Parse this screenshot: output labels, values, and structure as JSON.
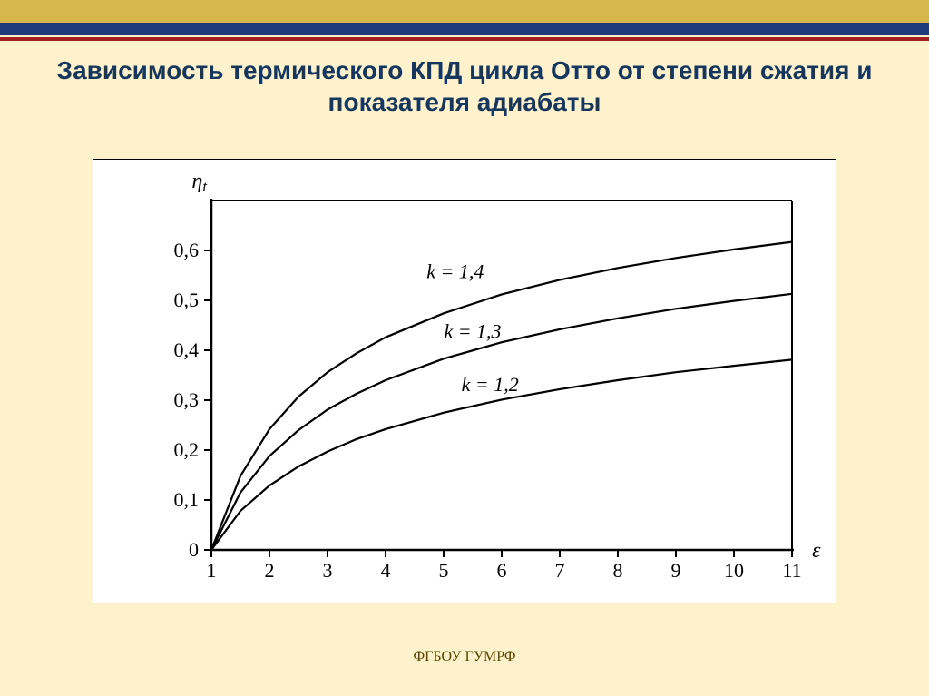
{
  "title": "Зависимость термического КПД цикла Отто от степени сжатия и показателя адиабаты",
  "footer": "ФГБОУ  ГУМРФ",
  "chart": {
    "type": "line",
    "background_color": "#ffffff",
    "axis_color": "#000000",
    "line_color": "#000000",
    "line_width": 2.2,
    "font_family": "Times New Roman",
    "tick_fontsize": 22,
    "label_fontsize": 24,
    "x_axis": {
      "label": "ε",
      "lim": [
        1,
        11
      ],
      "ticks": [
        1,
        2,
        3,
        4,
        5,
        6,
        7,
        8,
        9,
        10,
        11
      ]
    },
    "y_axis": {
      "label": "ηₜ",
      "label_plain": "η",
      "label_sub": "t",
      "lim": [
        0,
        0.7
      ],
      "ticks": [
        0,
        0.1,
        0.2,
        0.3,
        0.4,
        0.5,
        0.6
      ],
      "tick_labels": [
        "0",
        "0,1",
        "0,2",
        "0,3",
        "0,4",
        "0,5",
        "0,6"
      ]
    },
    "series": [
      {
        "k": 1.4,
        "label": "k = 1,4",
        "label_x": 5.2,
        "label_y": 0.545,
        "points": [
          [
            1,
            0
          ],
          [
            1.5,
            0.148
          ],
          [
            2,
            0.242
          ],
          [
            2.5,
            0.307
          ],
          [
            3,
            0.356
          ],
          [
            3.5,
            0.394
          ],
          [
            4,
            0.426
          ],
          [
            5,
            0.474
          ],
          [
            6,
            0.512
          ],
          [
            7,
            0.541
          ],
          [
            8,
            0.565
          ],
          [
            9,
            0.585
          ],
          [
            10,
            0.602
          ],
          [
            11,
            0.617
          ]
        ]
      },
      {
        "k": 1.3,
        "label": "k = 1,3",
        "label_x": 5.5,
        "label_y": 0.425,
        "points": [
          [
            1,
            0
          ],
          [
            1.5,
            0.115
          ],
          [
            2,
            0.188
          ],
          [
            2.5,
            0.24
          ],
          [
            3,
            0.281
          ],
          [
            3.5,
            0.313
          ],
          [
            4,
            0.34
          ],
          [
            5,
            0.383
          ],
          [
            6,
            0.416
          ],
          [
            7,
            0.442
          ],
          [
            8,
            0.464
          ],
          [
            9,
            0.483
          ],
          [
            10,
            0.499
          ],
          [
            11,
            0.513
          ]
        ]
      },
      {
        "k": 1.2,
        "label": "k = 1,2",
        "label_x": 5.8,
        "label_y": 0.318,
        "points": [
          [
            1,
            0
          ],
          [
            1.5,
            0.078
          ],
          [
            2,
            0.129
          ],
          [
            2.5,
            0.167
          ],
          [
            3,
            0.197
          ],
          [
            3.5,
            0.222
          ],
          [
            4,
            0.242
          ],
          [
            5,
            0.275
          ],
          [
            6,
            0.301
          ],
          [
            7,
            0.322
          ],
          [
            8,
            0.34
          ],
          [
            9,
            0.356
          ],
          [
            10,
            0.369
          ],
          [
            11,
            0.381
          ]
        ]
      }
    ]
  }
}
